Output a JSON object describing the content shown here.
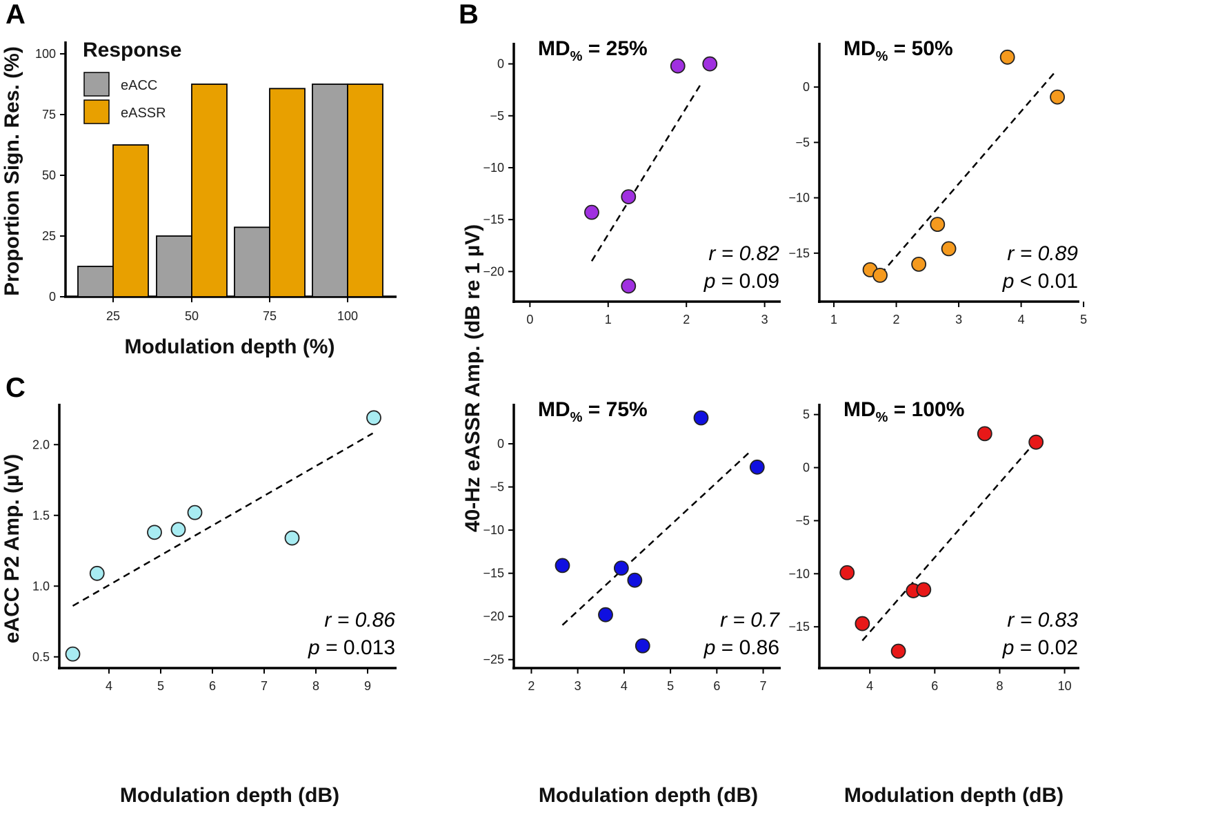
{
  "panel_letters": {
    "a": "A",
    "b": "B",
    "c": "C"
  },
  "stat_labels": {
    "r": "r",
    "p": "p"
  },
  "md_prefix": "MD",
  "md_sub": "%",
  "chart_data": [
    {
      "id": "A",
      "type": "bar",
      "title": "",
      "xlabel": "Modulation depth (%)",
      "ylabel": "Proportion Sign. Res. (%)",
      "categories": [
        "25",
        "50",
        "75",
        "100"
      ],
      "ylim": [
        0,
        100
      ],
      "yticks": [
        0,
        25,
        50,
        75,
        100
      ],
      "legend_title": "Response",
      "legend_position": "top-left",
      "series": [
        {
          "name": "eACC",
          "color": "#a0a0a0",
          "values": [
            12.5,
            25,
            28.6,
            87.5
          ]
        },
        {
          "name": "eASSR",
          "color": "#e8a000",
          "values": [
            62.5,
            87.5,
            85.7,
            87.5
          ]
        }
      ]
    },
    {
      "id": "C",
      "type": "scatter",
      "xlabel": "Modulation depth (dB)",
      "ylabel": "eACC P2 Amp. (µV)",
      "xlim": [
        3.2,
        9.4
      ],
      "ylim": [
        0.45,
        2.25
      ],
      "xticks": [
        4,
        5,
        6,
        7,
        8,
        9
      ],
      "yticks": [
        "0.5",
        "1.0",
        "1.5",
        "2.0"
      ],
      "color": "#a8ecf2",
      "x": [
        3.3,
        3.77,
        4.88,
        5.34,
        5.66,
        7.54,
        9.12
      ],
      "y": [
        0.52,
        1.09,
        1.38,
        1.4,
        1.52,
        1.34,
        2.19
      ],
      "fit": [
        [
          3.3,
          0.86
        ],
        [
          9.1,
          2.08
        ]
      ],
      "r": "0.86",
      "p": "= 0.013"
    },
    {
      "id": "B1",
      "type": "scatter",
      "md": "= 25%",
      "xlim": [
        -0.1,
        3.1
      ],
      "ylim": [
        -22.5,
        1.5
      ],
      "xticks": [
        0,
        1,
        2,
        3
      ],
      "yticks": [
        0,
        -5,
        -10,
        -15,
        -20
      ],
      "color": "#a030e0",
      "x": [
        0.79,
        1.26,
        1.26,
        1.89,
        2.3
      ],
      "y": [
        -14.3,
        -12.8,
        -21.4,
        -0.2,
        0.0
      ],
      "fit": [
        [
          0.79,
          -19.0
        ],
        [
          2.18,
          -2.0
        ]
      ],
      "r": "0.82",
      "p": "= 0.09"
    },
    {
      "id": "B2",
      "type": "scatter",
      "md": "= 50%",
      "xlim": [
        0.9,
        4.8
      ],
      "ylim": [
        -19.0,
        3.5
      ],
      "xticks": [
        1,
        2,
        3,
        4,
        5
      ],
      "yticks": [
        0,
        -5,
        -10,
        -15
      ],
      "color": "#f59a1e",
      "x": [
        1.58,
        1.74,
        2.36,
        2.66,
        2.84,
        3.78,
        4.58
      ],
      "y": [
        -16.5,
        -17.0,
        -16.0,
        -12.4,
        -14.6,
        2.7,
        -0.9
      ],
      "fit": [
        [
          1.75,
          -16.9
        ],
        [
          4.55,
          1.4
        ]
      ],
      "r": "0.89",
      "p": "< 0.01"
    },
    {
      "id": "B3",
      "type": "scatter",
      "md": "= 75%",
      "xlim": [
        1.8,
        7.2
      ],
      "ylim": [
        -25.5,
        4.0
      ],
      "xticks": [
        2,
        3,
        4,
        5,
        6,
        7
      ],
      "yticks": [
        0,
        -5,
        -10,
        -15,
        -20,
        -25
      ],
      "color": "#1010e0",
      "x": [
        2.67,
        3.6,
        3.94,
        4.23,
        4.4,
        5.66,
        6.87
      ],
      "y": [
        -14.1,
        -19.8,
        -14.4,
        -15.8,
        -23.4,
        3.0,
        -2.7
      ],
      "fit": [
        [
          2.67,
          -21.0
        ],
        [
          6.7,
          -1.0
        ]
      ],
      "r": "0.7",
      "p": "= 0.86"
    },
    {
      "id": "B4",
      "type": "scatter",
      "md": "= 100%",
      "xlim": [
        2.7,
        10.2
      ],
      "ylim": [
        -18.5,
        5.5
      ],
      "xticks": [
        4,
        6,
        8,
        10
      ],
      "yticks": [
        5,
        0,
        -5,
        -10,
        -15
      ],
      "color": "#e81818",
      "x": [
        3.3,
        3.77,
        4.88,
        5.34,
        5.66,
        7.54,
        9.12
      ],
      "y": [
        -9.9,
        -14.7,
        -17.3,
        -11.6,
        -11.5,
        3.2,
        2.4
      ],
      "fit": [
        [
          3.77,
          -16.3
        ],
        [
          9.12,
          2.5
        ]
      ],
      "r": "0.83",
      "p": "= 0.02"
    }
  ],
  "shared_labels": {
    "b_ylabel": "40-Hz eASSR Amp. (dB re 1 µV)",
    "b_xlabel": "Modulation depth (dB)"
  }
}
